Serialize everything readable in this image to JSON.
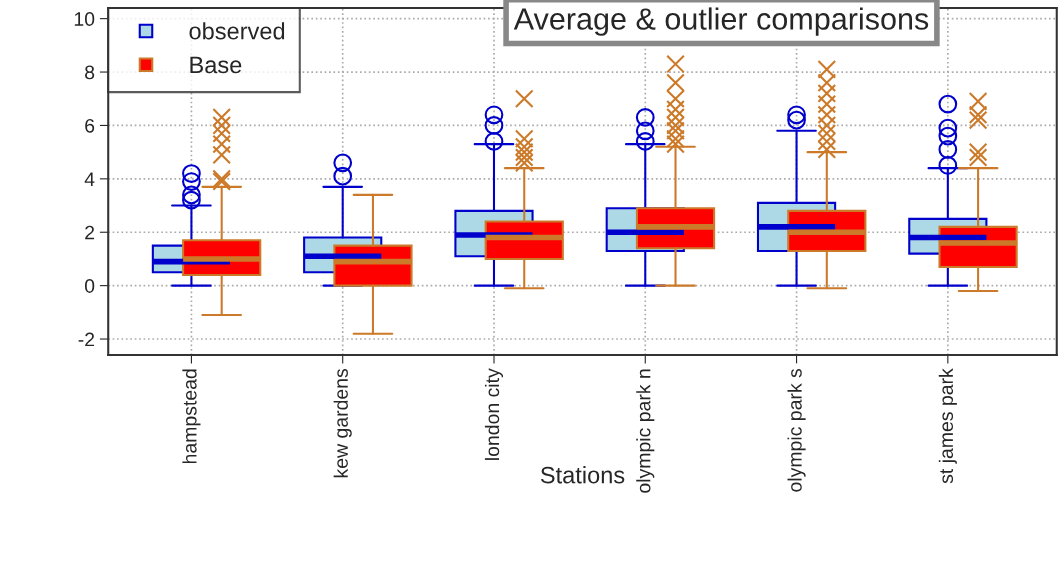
{
  "chart_data": {
    "type": "box",
    "title": "Average & outlier comparisons",
    "xlabel": "Stations",
    "categories": [
      "hampstead",
      "kew gardens",
      "london city",
      "olympic park n",
      "olympic park s",
      "st james park"
    ],
    "ylim": [
      -2.6,
      10.4
    ],
    "yticks": [
      -2,
      0,
      2,
      4,
      6,
      8,
      10
    ],
    "grid": true,
    "legend": "top left",
    "series": [
      {
        "name": "observed",
        "color": "#add8e6",
        "marker": "circle",
        "boxes": [
          {
            "low": 0,
            "q1": 0.5,
            "median": 0.9,
            "q3": 1.5,
            "high": 3.0,
            "outliers": [
              3.2,
              3.4,
              3.9,
              4.2
            ]
          },
          {
            "low": 0,
            "q1": 0.5,
            "median": 1.1,
            "q3": 1.8,
            "high": 3.7,
            "outliers": [
              4.1,
              4.6
            ]
          },
          {
            "low": 0,
            "q1": 1.1,
            "median": 1.9,
            "q3": 2.8,
            "high": 5.3,
            "outliers": [
              5.4,
              6.0,
              6.4
            ]
          },
          {
            "low": 0,
            "q1": 1.3,
            "median": 2.0,
            "q3": 2.9,
            "high": 5.3,
            "outliers": [
              5.4,
              5.8,
              6.3
            ]
          },
          {
            "low": 0,
            "q1": 1.3,
            "median": 2.2,
            "q3": 3.1,
            "high": 5.8,
            "outliers": [
              6.2,
              6.4
            ]
          },
          {
            "low": 0,
            "q1": 1.2,
            "median": 1.8,
            "q3": 2.5,
            "high": 4.4,
            "outliers": [
              4.5,
              5.1,
              5.6,
              5.9,
              6.8
            ]
          }
        ]
      },
      {
        "name": "Base",
        "color": "#ff0000",
        "marker": "cross",
        "boxes": [
          {
            "low": -1.1,
            "q1": 0.4,
            "median": 1.0,
            "q3": 1.7,
            "high": 3.7,
            "outliers": [
              3.9,
              4.0,
              4.9,
              5.3,
              5.7,
              6.0,
              6.3
            ]
          },
          {
            "low": -1.8,
            "q1": 0.0,
            "median": 0.9,
            "q3": 1.5,
            "high": 3.4
          },
          {
            "low": -0.1,
            "q1": 1.0,
            "median": 1.8,
            "q3": 2.4,
            "high": 4.4,
            "outliers": [
              4.6,
              4.8,
              5.0,
              5.2,
              5.5,
              7.0
            ]
          },
          {
            "low": 0.0,
            "q1": 1.4,
            "median": 2.2,
            "q3": 2.9,
            "high": 5.2,
            "outliers": [
              5.3,
              5.5,
              5.8,
              6.0,
              6.3,
              6.6,
              7.0,
              7.6,
              8.3
            ]
          },
          {
            "low": -0.1,
            "q1": 1.3,
            "median": 2.0,
            "q3": 2.8,
            "high": 5.0,
            "outliers": [
              5.1,
              5.4,
              5.7,
              6.0,
              6.4,
              6.8,
              7.2,
              7.6,
              8.1
            ]
          },
          {
            "low": -0.2,
            "q1": 0.7,
            "median": 1.6,
            "q3": 2.2,
            "high": 4.4,
            "outliers": [
              4.8,
              5.0,
              6.2,
              6.4,
              6.9
            ]
          }
        ]
      }
    ]
  }
}
